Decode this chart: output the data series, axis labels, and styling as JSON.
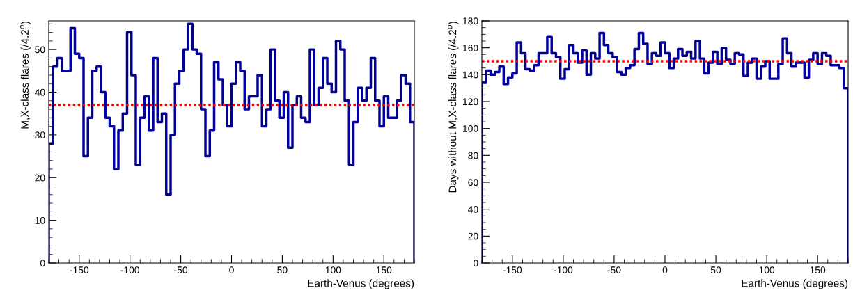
{
  "chart_data": [
    {
      "type": "histogram",
      "xlabel": "Earth-Venus (degrees)",
      "ylabel": "M,X-class flares (/4.2$^{o}$)",
      "bins": [
        -180,
        -175.71,
        -171.43,
        -167.14,
        -162.86,
        -158.57,
        -154.29,
        -150,
        -145.71,
        -141.43,
        -137.14,
        -132.86,
        -128.57,
        -124.29,
        -120,
        -115.71,
        -111.43,
        -107.14,
        -102.86,
        -98.57,
        -94.29,
        -90,
        -85.71,
        -81.43,
        -77.14,
        -72.86,
        -68.57,
        -64.29,
        -60,
        -55.71,
        -51.43,
        -47.14,
        -42.86,
        -38.57,
        -34.29,
        -30,
        -25.71,
        -21.43,
        -17.14,
        -12.86,
        -8.57,
        -4.29,
        0,
        4.29,
        8.57,
        12.86,
        17.14,
        21.43,
        25.71,
        30,
        34.29,
        38.57,
        42.86,
        47.14,
        51.43,
        55.71,
        60,
        64.29,
        68.57,
        72.86,
        77.14,
        81.43,
        85.71,
        90,
        94.29,
        98.57,
        102.86,
        107.14,
        111.43,
        115.71,
        120,
        124.29,
        128.57,
        132.86,
        137.14,
        141.43,
        145.71,
        150,
        154.29,
        158.57,
        162.86,
        167.14,
        171.43,
        175.71,
        180
      ],
      "values": [
        28,
        46,
        48,
        45,
        45,
        55,
        49,
        48,
        25,
        34,
        45,
        46,
        40,
        34,
        32,
        22,
        31,
        35,
        54,
        44,
        23,
        34,
        39,
        31,
        48,
        33,
        35,
        16,
        30,
        42,
        45,
        50,
        56,
        50,
        49,
        36,
        25,
        31,
        47,
        43,
        37,
        32,
        42,
        47,
        45,
        36,
        39,
        39,
        44,
        32,
        36,
        50,
        38,
        34,
        40,
        27,
        37,
        39,
        34,
        33,
        50,
        37,
        41,
        48,
        42,
        40,
        52,
        50,
        38,
        23,
        33,
        41,
        38,
        41,
        48,
        38,
        32,
        39,
        34,
        34,
        38,
        44,
        42,
        33
      ],
      "color": "#000099",
      "xlim": [
        -180,
        180
      ],
      "xticks": [
        -150,
        -100,
        -50,
        0,
        50,
        100,
        150
      ],
      "ylim": [
        0,
        56.7
      ],
      "yticks": [
        0,
        10,
        20,
        30,
        40,
        50
      ],
      "ref_lines": [
        {
          "axis": "y",
          "value": 37,
          "color": "#ff0000",
          "line_style": "dotted"
        }
      ],
      "grid": false,
      "legend": false
    },
    {
      "type": "histogram",
      "xlabel": "Earth-Venus (degrees)",
      "ylabel": "Days without M,X-class flares (/4.2$^{o}$)",
      "bins": [
        -180,
        -175.71,
        -171.43,
        -167.14,
        -162.86,
        -158.57,
        -154.29,
        -150,
        -145.71,
        -141.43,
        -137.14,
        -132.86,
        -128.57,
        -124.29,
        -120,
        -115.71,
        -111.43,
        -107.14,
        -102.86,
        -98.57,
        -94.29,
        -90,
        -85.71,
        -81.43,
        -77.14,
        -72.86,
        -68.57,
        -64.29,
        -60,
        -55.71,
        -51.43,
        -47.14,
        -42.86,
        -38.57,
        -34.29,
        -30,
        -25.71,
        -21.43,
        -17.14,
        -12.86,
        -8.57,
        -4.29,
        0,
        4.29,
        8.57,
        12.86,
        17.14,
        21.43,
        25.71,
        30,
        34.29,
        38.57,
        42.86,
        47.14,
        51.43,
        55.71,
        60,
        64.29,
        68.57,
        72.86,
        77.14,
        81.43,
        85.71,
        90,
        94.29,
        98.57,
        102.86,
        107.14,
        111.43,
        115.71,
        120,
        124.29,
        128.57,
        132.86,
        137.14,
        141.43,
        145.71,
        150,
        154.29,
        158.57,
        162.86,
        167.14,
        171.43,
        175.71,
        180
      ],
      "values": [
        134,
        143,
        140,
        142,
        146,
        133,
        138,
        141,
        164,
        156,
        144,
        143,
        147,
        156,
        156,
        168,
        156,
        153,
        137,
        144,
        162,
        156,
        149,
        158,
        140,
        156,
        152,
        171,
        162,
        156,
        153,
        142,
        140,
        145,
        147,
        159,
        171,
        163,
        148,
        156,
        154,
        164,
        156,
        145,
        152,
        159,
        154,
        157,
        152,
        165,
        152,
        141,
        149,
        157,
        148,
        160,
        151,
        148,
        156,
        155,
        139,
        149,
        152,
        137,
        146,
        150,
        137,
        137,
        148,
        167,
        156,
        146,
        149,
        149,
        138,
        151,
        156,
        148,
        156,
        154,
        147,
        147,
        145,
        130
      ],
      "color": "#000099",
      "xlim": [
        -180,
        180
      ],
      "xticks": [
        -150,
        -100,
        -50,
        0,
        50,
        100,
        150
      ],
      "ylim": [
        0,
        180
      ],
      "yticks": [
        0,
        20,
        40,
        60,
        80,
        100,
        120,
        140,
        160,
        180
      ],
      "ref_lines": [
        {
          "axis": "y",
          "value": 150,
          "color": "#ff0000",
          "line_style": "dotted"
        }
      ],
      "grid": false,
      "legend": false
    }
  ]
}
